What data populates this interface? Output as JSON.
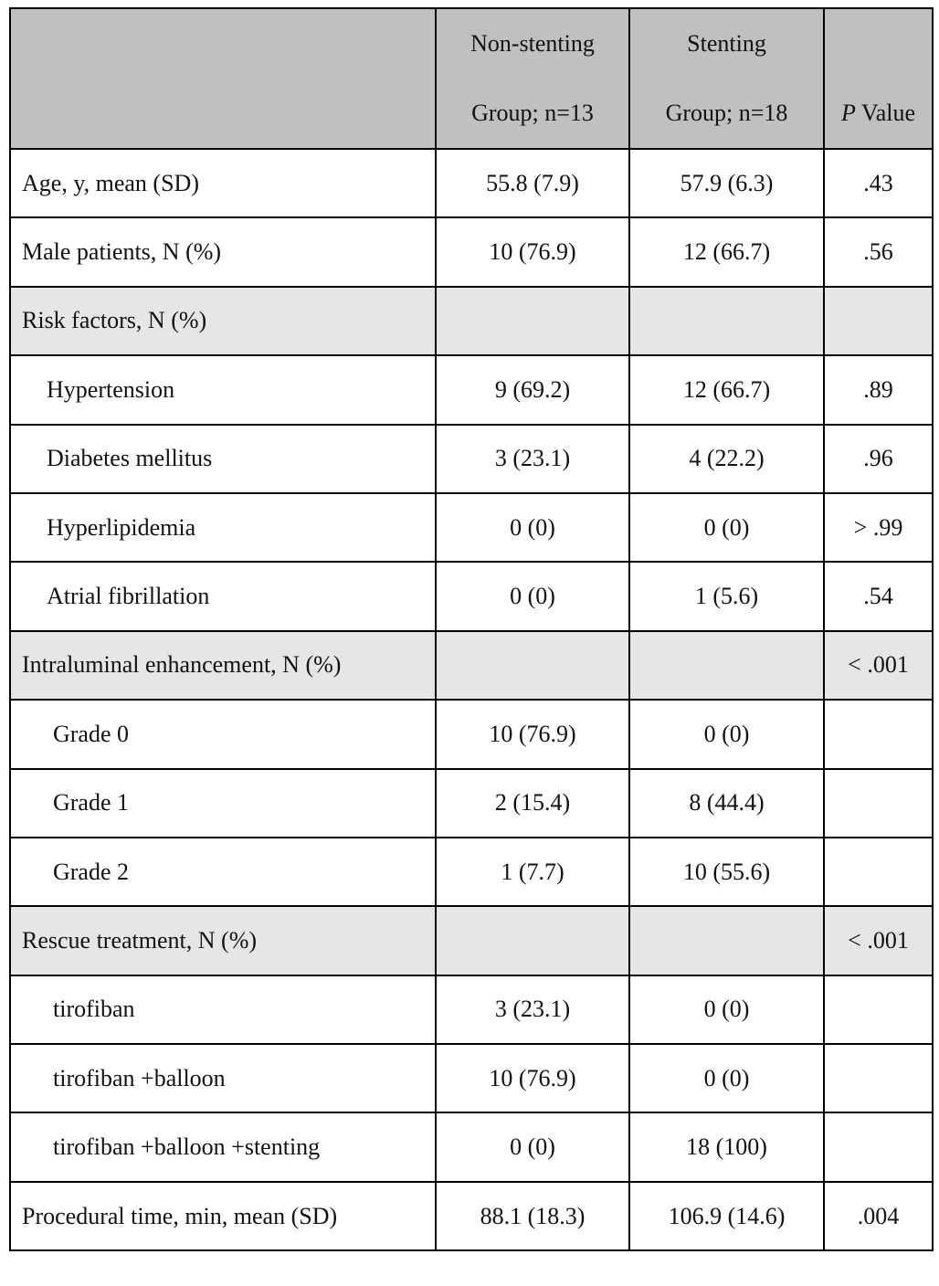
{
  "header": {
    "cells": [
      null,
      [
        "Non-stenting",
        "Group; n=13"
      ],
      [
        "Stenting",
        "Group; n=18"
      ],
      {
        "italic": "P",
        "rest": "Value"
      }
    ]
  },
  "table": {
    "rows": [
      {
        "label": "Age, y, mean (SD)",
        "cells": [
          "55.8 (7.9)",
          "57.9 (6.3)",
          ".43"
        ]
      },
      {
        "label": "Male patients, N (%)",
        "cells": [
          "10 (76.9)",
          "12 (66.7)",
          ".56"
        ]
      },
      {
        "label": "Risk factors, N (%)",
        "cells": [
          null,
          null,
          null
        ],
        "shaded": true
      },
      {
        "label": "Hypertension",
        "cells": [
          "9 (69.2)",
          "12 (66.7)",
          ".89"
        ],
        "indent": 1
      },
      {
        "label": "Diabetes mellitus",
        "cells": [
          "3 (23.1)",
          "4 (22.2)",
          ".96"
        ],
        "indent": 1
      },
      {
        "label": "Hyperlipidemia",
        "cells": [
          "0 (0)",
          "0 (0)",
          "> .99"
        ],
        "indent": 1
      },
      {
        "label": "Atrial fibrillation",
        "cells": [
          "0 (0)",
          "1 (5.6)",
          ".54"
        ],
        "indent": 1
      },
      {
        "label": "Intraluminal enhancement, N (%)",
        "cells": [
          null,
          null,
          "< .001"
        ],
        "shaded": true
      },
      {
        "label": "Grade 0",
        "cells": [
          "10 (76.9)",
          "0 (0)",
          null
        ],
        "indent": 2
      },
      {
        "label": "Grade 1",
        "cells": [
          "2 (15.4)",
          "8 (44.4)",
          null
        ],
        "indent": 2
      },
      {
        "label": "Grade 2",
        "cells": [
          "1 (7.7)",
          "10 (55.6)",
          null
        ],
        "indent": 2
      },
      {
        "label": "Rescue treatment, N (%)",
        "cells": [
          null,
          null,
          "< .001"
        ],
        "shaded": true
      },
      {
        "label": "tirofiban",
        "cells": [
          "3 (23.1)",
          "0 (0)",
          null
        ],
        "indent": 2
      },
      {
        "label": "tirofiban +balloon",
        "cells": [
          "10 (76.9)",
          "0 (0)",
          null
        ],
        "indent": 2
      },
      {
        "label": "tirofiban +balloon +stenting",
        "cells": [
          "0 (0)",
          "18 (100)",
          null
        ],
        "indent": 2
      },
      {
        "label": "Procedural time, min, mean (SD)",
        "cells": [
          "88.1 (18.3)",
          "106.9 (14.6)",
          ".004"
        ]
      }
    ]
  }
}
